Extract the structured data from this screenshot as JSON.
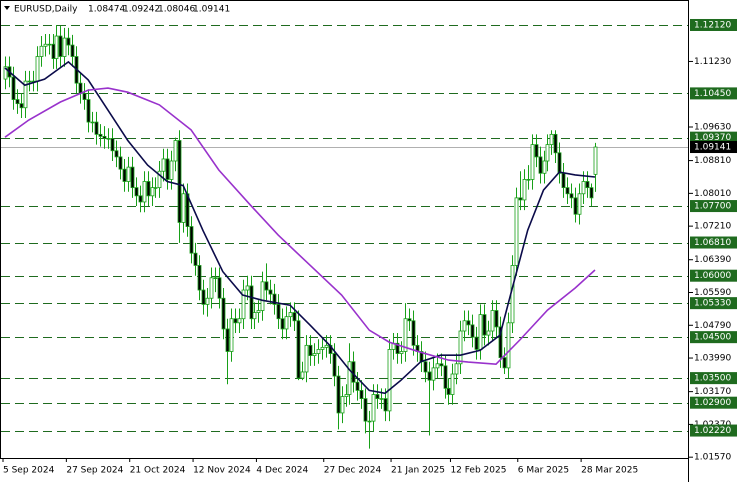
{
  "chart_data": {
    "type": "candlestick",
    "symbol": "EURUSD,Daily",
    "header_values": [
      "1.08474",
      "1.09242",
      "1.08046",
      "1.09141"
    ],
    "ylim": [
      1.0155,
      1.1273
    ],
    "yticks": [
      {
        "value": 1.1123,
        "label": "1.11230"
      },
      {
        "value": 1.0963,
        "label": "1.09630"
      },
      {
        "value": 1.0881,
        "label": "1.08810"
      },
      {
        "value": 1.0801,
        "label": "1.08010"
      },
      {
        "value": 1.0721,
        "label": "1.07210"
      },
      {
        "value": 1.0639,
        "label": "1.06390"
      },
      {
        "value": 1.0559,
        "label": "1.05590"
      },
      {
        "value": 1.0479,
        "label": "1.04790"
      },
      {
        "value": 1.0399,
        "label": "1.03990"
      },
      {
        "value": 1.0317,
        "label": "1.03170"
      },
      {
        "value": 1.0237,
        "label": "1.02370"
      },
      {
        "value": 1.0157,
        "label": "1.01570"
      }
    ],
    "levels": [
      {
        "value": 1.1212,
        "label": "1.12120"
      },
      {
        "value": 1.1045,
        "label": "1.10450"
      },
      {
        "value": 1.0937,
        "label": "1.09370"
      },
      {
        "value": 1.077,
        "label": "1.07700"
      },
      {
        "value": 1.0681,
        "label": "1.06810"
      },
      {
        "value": 1.06,
        "label": "1.06000"
      },
      {
        "value": 1.0533,
        "label": "1.05330"
      },
      {
        "value": 1.045,
        "label": "1.04500"
      },
      {
        "value": 1.035,
        "label": "1.03500"
      },
      {
        "value": 1.029,
        "label": "1.02900"
      },
      {
        "value": 1.0222,
        "label": "1.02220"
      }
    ],
    "level_color": "#1f6b1f",
    "price_line": {
      "value": 1.09141,
      "label": "1.09141"
    },
    "xticks": [
      {
        "value": 0,
        "label": "5 Sep 2024"
      },
      {
        "value": 16,
        "label": "27 Sep 2024"
      },
      {
        "value": 32,
        "label": "21 Oct 2024"
      },
      {
        "value": 48,
        "label": "12 Nov 2024"
      },
      {
        "value": 64,
        "label": "4 Dec 2024"
      },
      {
        "value": 81,
        "label": "27 Dec 2024"
      },
      {
        "value": 98,
        "label": "21 Jan 2025"
      },
      {
        "value": 113,
        "label": "12 Feb 2025"
      },
      {
        "value": 130,
        "label": "6 Mar 2025"
      },
      {
        "value": 146,
        "label": "28 Mar 2025"
      }
    ],
    "candle_color": "#18a018",
    "ohlc": [
      [
        1.108,
        1.1135,
        1.1055,
        1.111
      ],
      [
        1.111,
        1.1135,
        1.106,
        1.1085
      ],
      [
        1.1085,
        1.111,
        1.1005,
        1.103
      ],
      [
        1.103,
        1.1055,
        1.0995,
        1.102
      ],
      [
        1.102,
        1.1045,
        1.0985,
        1.101
      ],
      [
        1.101,
        1.11,
        1.0985,
        1.1075
      ],
      [
        1.1075,
        1.11,
        1.105,
        1.1075
      ],
      [
        1.1075,
        1.11,
        1.105,
        1.1075
      ],
      [
        1.1075,
        1.116,
        1.105,
        1.1135
      ],
      [
        1.1135,
        1.1185,
        1.111,
        1.116
      ],
      [
        1.116,
        1.119,
        1.1135,
        1.1165
      ],
      [
        1.1165,
        1.119,
        1.114,
        1.1165
      ],
      [
        1.1165,
        1.119,
        1.1105,
        1.113
      ],
      [
        1.113,
        1.1212,
        1.1105,
        1.1185
      ],
      [
        1.1185,
        1.121,
        1.111,
        1.1135
      ],
      [
        1.1135,
        1.1205,
        1.111,
        1.118
      ],
      [
        1.118,
        1.1205,
        1.1138,
        1.1163
      ],
      [
        1.1163,
        1.1188,
        1.111,
        1.1135
      ],
      [
        1.1135,
        1.116,
        1.1045,
        1.107
      ],
      [
        1.107,
        1.1095,
        1.102,
        1.1045
      ],
      [
        1.1045,
        1.107,
        1.1005,
        1.103
      ],
      [
        1.103,
        1.1055,
        1.095,
        1.0975
      ],
      [
        1.0975,
        1.1,
        1.095,
        1.0975
      ],
      [
        1.0975,
        1.1,
        1.092,
        1.0945
      ],
      [
        1.0945,
        1.097,
        1.0915,
        1.094
      ],
      [
        1.094,
        1.0965,
        1.091,
        1.0935
      ],
      [
        1.0935,
        1.096,
        1.091,
        1.0935
      ],
      [
        1.0935,
        1.096,
        1.088,
        1.0905
      ],
      [
        1.0905,
        1.093,
        1.0865,
        1.089
      ],
      [
        1.089,
        1.0915,
        1.0835,
        1.086
      ],
      [
        1.086,
        1.0885,
        1.0805,
        1.083
      ],
      [
        1.083,
        1.089,
        1.0805,
        1.0865
      ],
      [
        1.0865,
        1.089,
        1.079,
        1.0815
      ],
      [
        1.0815,
        1.084,
        1.077,
        1.0795
      ],
      [
        1.0795,
        1.082,
        1.0755,
        1.078
      ],
      [
        1.078,
        1.0855,
        1.0755,
        1.083
      ],
      [
        1.083,
        1.0855,
        1.077,
        1.0795
      ],
      [
        1.0795,
        1.084,
        1.077,
        1.0815
      ],
      [
        1.0815,
        1.084,
        1.079,
        1.0815
      ],
      [
        1.0815,
        1.088,
        1.079,
        1.0855
      ],
      [
        1.0855,
        1.091,
        1.083,
        1.0885
      ],
      [
        1.0885,
        1.091,
        1.081,
        1.0835
      ],
      [
        1.0835,
        1.0905,
        1.081,
        1.088
      ],
      [
        1.088,
        1.0937,
        1.0855,
        1.093
      ],
      [
        1.093,
        1.0955,
        1.068,
        1.073
      ],
      [
        1.073,
        1.0825,
        1.0705,
        1.08
      ],
      [
        1.08,
        1.0825,
        1.0695,
        1.072
      ],
      [
        1.072,
        1.0745,
        1.063,
        1.0655
      ],
      [
        1.0655,
        1.068,
        1.06,
        1.0625
      ],
      [
        1.0625,
        1.065,
        1.054,
        1.0565
      ],
      [
        1.0565,
        1.059,
        1.0505,
        1.053
      ],
      [
        1.053,
        1.057,
        1.05,
        1.0545
      ],
      [
        1.0545,
        1.062,
        1.052,
        1.0595
      ],
      [
        1.0595,
        1.062,
        1.056,
        1.0595
      ],
      [
        1.0595,
        1.062,
        1.052,
        1.0545
      ],
      [
        1.0545,
        1.057,
        1.0445,
        1.047
      ],
      [
        1.047,
        1.0495,
        1.0335,
        1.0415
      ],
      [
        1.0415,
        1.052,
        1.039,
        1.0495
      ],
      [
        1.0495,
        1.052,
        1.046,
        1.0485
      ],
      [
        1.0485,
        1.052,
        1.046,
        1.0495
      ],
      [
        1.0495,
        1.059,
        1.047,
        1.0565
      ],
      [
        1.0565,
        1.06,
        1.054,
        1.0575
      ],
      [
        1.0575,
        1.06,
        1.047,
        1.0495
      ],
      [
        1.0495,
        1.0535,
        1.047,
        1.051
      ],
      [
        1.051,
        1.054,
        1.0485,
        1.0515
      ],
      [
        1.0515,
        1.061,
        1.049,
        1.0585
      ],
      [
        1.0585,
        1.063,
        1.054,
        1.0565
      ],
      [
        1.0565,
        1.059,
        1.053,
        1.0555
      ],
      [
        1.0555,
        1.058,
        1.0505,
        1.053
      ],
      [
        1.053,
        1.0555,
        1.047,
        1.0495
      ],
      [
        1.0495,
        1.052,
        1.0445,
        1.047
      ],
      [
        1.047,
        1.0525,
        1.0445,
        1.05
      ],
      [
        1.05,
        1.0535,
        1.0475,
        1.051
      ],
      [
        1.051,
        1.0535,
        1.0465,
        1.049
      ],
      [
        1.049,
        1.0515,
        1.0345,
        1.035
      ],
      [
        1.035,
        1.039,
        1.0345,
        1.0365
      ],
      [
        1.0365,
        1.0455,
        1.034,
        1.043
      ],
      [
        1.043,
        1.0455,
        1.038,
        1.0405
      ],
      [
        1.0405,
        1.0435,
        1.038,
        1.041
      ],
      [
        1.041,
        1.0445,
        1.0385,
        1.042
      ],
      [
        1.042,
        1.045,
        1.0395,
        1.0425
      ],
      [
        1.0425,
        1.0455,
        1.04,
        1.043
      ],
      [
        1.043,
        1.0455,
        1.0385,
        1.041
      ],
      [
        1.041,
        1.0435,
        1.033,
        1.0355
      ],
      [
        1.0355,
        1.038,
        1.0225,
        1.0265
      ],
      [
        1.0265,
        1.033,
        1.024,
        1.0305
      ],
      [
        1.0305,
        1.0335,
        1.028,
        1.031
      ],
      [
        1.031,
        1.0435,
        1.0285,
        1.039
      ],
      [
        1.039,
        1.0415,
        1.0315,
        1.034
      ],
      [
        1.034,
        1.0365,
        1.0295,
        1.032
      ],
      [
        1.032,
        1.0345,
        1.0275,
        1.03
      ],
      [
        1.03,
        1.0325,
        1.0215,
        1.0245
      ],
      [
        1.0245,
        1.027,
        1.0178,
        1.0245
      ],
      [
        1.0245,
        1.0335,
        1.022,
        1.031
      ],
      [
        1.031,
        1.0335,
        1.0275,
        1.03
      ],
      [
        1.03,
        1.0325,
        1.0275,
        1.03
      ],
      [
        1.03,
        1.0325,
        1.0245,
        1.027
      ],
      [
        1.027,
        1.0445,
        1.0245,
        1.042
      ],
      [
        1.042,
        1.046,
        1.0395,
        1.0435
      ],
      [
        1.0435,
        1.046,
        1.0385,
        1.041
      ],
      [
        1.041,
        1.044,
        1.0385,
        1.0415
      ],
      [
        1.0415,
        1.0533,
        1.039,
        1.0495
      ],
      [
        1.0495,
        1.052,
        1.0465,
        1.049
      ],
      [
        1.049,
        1.0515,
        1.0405,
        1.043
      ],
      [
        1.043,
        1.0455,
        1.039,
        1.0415
      ],
      [
        1.0415,
        1.044,
        1.0365,
        1.039
      ],
      [
        1.039,
        1.0415,
        1.034,
        1.0365
      ],
      [
        1.0365,
        1.039,
        1.021,
        1.0345
      ],
      [
        1.0345,
        1.04,
        1.032,
        1.0375
      ],
      [
        1.0375,
        1.041,
        1.035,
        1.0385
      ],
      [
        1.0385,
        1.041,
        1.0355,
        1.038
      ],
      [
        1.038,
        1.0405,
        1.03,
        1.0325
      ],
      [
        1.0325,
        1.035,
        1.0285,
        1.031
      ],
      [
        1.031,
        1.0385,
        1.0285,
        1.036
      ],
      [
        1.036,
        1.041,
        1.0335,
        1.0385
      ],
      [
        1.0385,
        1.049,
        1.036,
        1.0465
      ],
      [
        1.0465,
        1.0515,
        1.044,
        1.049
      ],
      [
        1.049,
        1.0515,
        1.0455,
        1.048
      ],
      [
        1.048,
        1.0505,
        1.0425,
        1.045
      ],
      [
        1.045,
        1.0475,
        1.0395,
        1.042
      ],
      [
        1.042,
        1.053,
        1.0395,
        1.0505
      ],
      [
        1.0505,
        1.053,
        1.043,
        1.0455
      ],
      [
        1.0455,
        1.049,
        1.043,
        1.0465
      ],
      [
        1.0465,
        1.054,
        1.044,
        1.0515
      ],
      [
        1.0515,
        1.054,
        1.045,
        1.0475
      ],
      [
        1.0475,
        1.05,
        1.0375,
        1.04
      ],
      [
        1.04,
        1.0425,
        1.036,
        1.0375
      ],
      [
        1.0375,
        1.051,
        1.035,
        1.0485
      ],
      [
        1.0485,
        1.065,
        1.046,
        1.0625
      ],
      [
        1.0625,
        1.0815,
        1.06,
        1.079
      ],
      [
        1.079,
        1.0855,
        1.076,
        1.0785
      ],
      [
        1.0785,
        1.086,
        1.076,
        1.0835
      ],
      [
        1.0835,
        1.087,
        1.081,
        1.0835
      ],
      [
        1.0835,
        1.0945,
        1.081,
        1.092
      ],
      [
        1.092,
        1.0945,
        1.0865,
        1.089
      ],
      [
        1.089,
        1.0915,
        1.0825,
        1.085
      ],
      [
        1.085,
        1.0905,
        1.0825,
        1.088
      ],
      [
        1.088,
        1.0945,
        1.0855,
        1.092
      ],
      [
        1.092,
        1.0955,
        1.0895,
        1.0945
      ],
      [
        1.0945,
        1.0955,
        1.0875,
        1.09
      ],
      [
        1.09,
        1.0925,
        1.0825,
        1.085
      ],
      [
        1.085,
        1.0875,
        1.079,
        1.0815
      ],
      [
        1.0815,
        1.084,
        1.0775,
        1.08
      ],
      [
        1.08,
        1.0825,
        1.0765,
        1.079
      ],
      [
        1.079,
        1.0815,
        1.073,
        1.075
      ],
      [
        1.075,
        1.0825,
        1.0725,
        1.08
      ],
      [
        1.08,
        1.0855,
        1.0775,
        1.083
      ],
      [
        1.083,
        1.0855,
        1.079,
        1.0815
      ],
      [
        1.0815,
        1.0825,
        1.077,
        1.079
      ],
      [
        1.08474,
        1.09242,
        1.08046,
        1.09141
      ]
    ],
    "series": [
      {
        "color": "#0b0b4a",
        "x": [
          0,
          5,
          10,
          16,
          21,
          26,
          31,
          36,
          41,
          45,
          50,
          55,
          60,
          65,
          72,
          77,
          82,
          87,
          92,
          96,
          100,
          105,
          110,
          115,
          120,
          125,
          128,
          132,
          136,
          140,
          144,
          149
        ],
        "values": [
          1.1107,
          1.1065,
          1.108,
          1.1122,
          1.1078,
          1.1004,
          1.093,
          1.087,
          1.083,
          1.082,
          1.071,
          1.061,
          1.0553,
          1.054,
          1.0528,
          1.048,
          1.043,
          1.037,
          1.032,
          1.0313,
          1.0345,
          1.039,
          1.0406,
          1.0406,
          1.0418,
          1.0455,
          1.0565,
          1.0711,
          1.0809,
          1.0853,
          1.0846,
          1.0841
        ]
      },
      {
        "color": "#9932cc",
        "x": [
          0,
          6,
          14,
          21,
          26,
          31,
          39,
          47,
          54,
          62,
          69,
          77,
          85,
          92,
          97,
          105,
          112,
          117,
          124,
          130,
          137,
          144,
          149
        ],
        "values": [
          1.0938,
          1.098,
          1.1024,
          1.1053,
          1.1058,
          1.1048,
          1.1017,
          1.0956,
          1.0858,
          1.0772,
          1.0699,
          1.0626,
          1.0553,
          1.0467,
          1.0438,
          1.0413,
          1.0394,
          1.0389,
          1.0384,
          1.0443,
          1.0516,
          1.057,
          1.0614
        ]
      }
    ]
  }
}
